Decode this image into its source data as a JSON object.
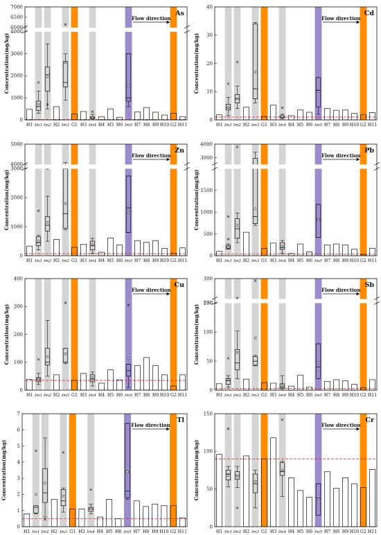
{
  "figure": {
    "flow_label": "Flow direction"
  },
  "chart_data": [
    {
      "type": "bar",
      "title": "As",
      "ylabel": "Concentration(mg/kg)",
      "yticks": [
        "0",
        "1000",
        "2000",
        "3000",
        "4000",
        "6000",
        "6500",
        "7000"
      ],
      "ylim_lower": [
        0,
        4000
      ],
      "ylim_upper": [
        6000,
        7000
      ],
      "reference_line": 20,
      "categories": [
        "H1",
        "Im1",
        "Im2",
        "H2",
        "Im3",
        "G1",
        "H3",
        "Im4",
        "H4",
        "H5",
        "H6",
        "Im5",
        "H7",
        "H8",
        "H9",
        "H10",
        "G2",
        "H11"
      ],
      "values": [
        480,
        null,
        null,
        600,
        null,
        270,
        380,
        null,
        150,
        500,
        120,
        null,
        360,
        560,
        350,
        220,
        300,
        150
      ],
      "boxes": [
        {
          "category": "Im1",
          "min": 300,
          "q1": 430,
          "median": 600,
          "q3": 850,
          "max": 1300,
          "mean": 700,
          "outliers": [
            1700
          ]
        },
        {
          "category": "Im2",
          "min": 500,
          "q1": 1300,
          "median": 2050,
          "q3": 2400,
          "max": 3450,
          "mean": 1950,
          "outliers": [
            700
          ]
        },
        {
          "category": "Im3",
          "min": 900,
          "q1": 1500,
          "median": 1700,
          "q3": 2650,
          "max": 3000,
          "mean": 2600,
          "outliers": [
            6150
          ]
        },
        {
          "category": "Im4",
          "min": 50,
          "q1": 70,
          "median": 100,
          "q3": 150,
          "max": 250,
          "mean": 110,
          "outliers": [
            370
          ]
        },
        {
          "category": "Im5",
          "min": 600,
          "q1": 850,
          "median": 1000,
          "q3": 3000,
          "max": 3000,
          "mean": 1550,
          "outliers": []
        }
      ]
    },
    {
      "type": "bar",
      "title": "Cd",
      "ylabel": "Concentration(mg/kg)",
      "yticks": [
        "0",
        "10",
        "20",
        "30",
        "40"
      ],
      "ylim": [
        0,
        40
      ],
      "reference_line": 1,
      "categories": [
        "H1",
        "Im1",
        "Im2",
        "H2",
        "Im3",
        "G1",
        "H3",
        "Im4",
        "H4",
        "H5",
        "H6",
        "Im5",
        "H7",
        "H8",
        "H9",
        "H10",
        "G2",
        "H11"
      ],
      "values": [
        1.8,
        null,
        null,
        4.5,
        null,
        1.2,
        5.2,
        null,
        1.5,
        3.5,
        2.7,
        null,
        4.0,
        3.4,
        3.5,
        2.3,
        1.8,
        2.6
      ],
      "boxes": [
        {
          "category": "Im1",
          "min": 1.5,
          "q1": 3.5,
          "median": 4.2,
          "q3": 5.5,
          "max": 8,
          "mean": 4.5,
          "outliers": [
            12.8
          ]
        },
        {
          "category": "Im2",
          "min": 4,
          "q1": 6,
          "median": 7.5,
          "q3": 9,
          "max": 12,
          "mean": 7.5,
          "outliers": [
            20.5
          ]
        },
        {
          "category": "Im3",
          "min": 6,
          "q1": 7.5,
          "median": 11,
          "q3": 34,
          "max": 34.5,
          "mean": 17,
          "outliers": []
        },
        {
          "category": "Im4",
          "min": 0.3,
          "q1": 0.8,
          "median": 1,
          "q3": 1.5,
          "max": 2,
          "mean": 1.2,
          "outliers": [
            4.3
          ]
        },
        {
          "category": "Im5",
          "min": 2,
          "q1": 4.5,
          "median": 10.5,
          "q3": 15,
          "max": 15,
          "mean": 10,
          "outliers": []
        }
      ]
    },
    {
      "type": "bar",
      "title": "Zn",
      "ylabel": "Concentration(mg/kg)",
      "yticks": [
        "0",
        "1000",
        "2000",
        "3000",
        "4000",
        "5000"
      ],
      "ylim_lower": [
        0,
        3000
      ],
      "ylim_upper": [
        4000,
        5000
      ],
      "reference_line": 70,
      "categories": [
        "H1",
        "Im1",
        "Im2",
        "H2",
        "Im3",
        "G1",
        "H3",
        "Im4",
        "H4",
        "H5",
        "H6",
        "Im5",
        "H7",
        "H8",
        "H9",
        "H10",
        "G2",
        "H11"
      ],
      "values": [
        330,
        null,
        null,
        560,
        null,
        290,
        390,
        null,
        120,
        610,
        370,
        null,
        520,
        460,
        520,
        250,
        90,
        270
      ],
      "boxes": [
        {
          "category": "Im1",
          "min": 200,
          "q1": 350,
          "median": 450,
          "q3": 650,
          "max": 700,
          "mean": 500,
          "outliers": [
            1550
          ]
        },
        {
          "category": "Im2",
          "min": 500,
          "q1": 850,
          "median": 1050,
          "q3": 1350,
          "max": 2050,
          "mean": 1150,
          "outliers": [
            3350
          ]
        },
        {
          "category": "Im3",
          "min": 900,
          "q1": 950,
          "median": 1450,
          "q3": 3250,
          "max": 4100,
          "mean": 1800,
          "outliers": []
        },
        {
          "category": "Im4",
          "min": 80,
          "q1": 200,
          "median": 350,
          "q3": 500,
          "max": 600,
          "mean": 400,
          "outliers": []
        },
        {
          "category": "Im5",
          "min": 800,
          "q1": 800,
          "median": 1650,
          "q3": 2750,
          "max": 2750,
          "mean": 1500,
          "outliers": []
        }
      ]
    },
    {
      "type": "bar",
      "title": "Pb",
      "ylabel": "Concentration(mg/kg)",
      "yticks": [
        "0",
        "500",
        "1000",
        "1500",
        "3000",
        "4000"
      ],
      "ylim_lower": [
        0,
        2000
      ],
      "ylim_upper": [
        2500,
        4000
      ],
      "reference_line": 40,
      "categories": [
        "H1",
        "Im1",
        "Im2",
        "H2",
        "Im3",
        "G1",
        "H3",
        "Im4",
        "H4",
        "H5",
        "H6",
        "Im5",
        "H7",
        "H8",
        "H9",
        "H10",
        "G2",
        "H11"
      ],
      "values": [
        100,
        null,
        null,
        540,
        null,
        170,
        290,
        null,
        50,
        270,
        90,
        null,
        250,
        270,
        250,
        150,
        30,
        170
      ],
      "boxes": [
        {
          "category": "Im1",
          "min": 150,
          "q1": 160,
          "median": 200,
          "q3": 240,
          "max": 270,
          "mean": 190,
          "outliers": [
            900,
            380
          ]
        },
        {
          "category": "Im2",
          "min": 300,
          "q1": 400,
          "median": 620,
          "q3": 850,
          "max": 980,
          "mean": 700,
          "outliers": [
            3800
          ]
        },
        {
          "category": "Im3",
          "min": 700,
          "q1": 740,
          "median": 900,
          "q3": 2950,
          "max": 3400,
          "mean": 1080,
          "outliers": []
        },
        {
          "category": "Im4",
          "min": 50,
          "q1": 150,
          "median": 190,
          "q3": 300,
          "max": 350,
          "mean": 220,
          "outliers": []
        },
        {
          "category": "Im5",
          "min": 420,
          "q1": 420,
          "median": 830,
          "q3": 1180,
          "max": 1180,
          "mean": 830,
          "outliers": []
        }
      ]
    },
    {
      "type": "bar",
      "title": "Cu",
      "ylabel": "Concentration(mg/kg)",
      "yticks": [
        "0",
        "100",
        "200",
        "300",
        "400"
      ],
      "ylim": [
        0,
        400
      ],
      "reference_line": 35,
      "categories": [
        "H1",
        "Im1",
        "Im2",
        "H2",
        "Im3",
        "G1",
        "H3",
        "Im4",
        "H4",
        "H5",
        "H6",
        "Im5",
        "H7",
        "H8",
        "H9",
        "H10",
        "G2",
        "H11"
      ],
      "values": [
        38,
        null,
        null,
        55,
        null,
        35,
        60,
        null,
        25,
        73,
        37,
        null,
        88,
        117,
        88,
        55,
        15,
        55
      ],
      "boxes": [
        {
          "category": "Im1",
          "min": 20,
          "q1": 30,
          "median": 38,
          "q3": 45,
          "max": 60,
          "mean": 40,
          "outliers": [
            110
          ]
        },
        {
          "category": "Im2",
          "min": 50,
          "q1": 90,
          "median": 100,
          "q3": 150,
          "max": 250,
          "mean": 120,
          "outliers": []
        },
        {
          "category": "Im3",
          "min": 95,
          "q1": 100,
          "median": 100,
          "q3": 150,
          "max": 150,
          "mean": 130,
          "outliers": [
            313
          ]
        },
        {
          "category": "Im4",
          "min": 15,
          "q1": 30,
          "median": 40,
          "q3": 55,
          "max": 65,
          "mean": 45,
          "outliers": []
        },
        {
          "category": "Im5",
          "min": 10,
          "q1": 50,
          "median": 70,
          "q3": 93,
          "max": 93,
          "mean": 115,
          "outliers": [
            305
          ]
        }
      ]
    },
    {
      "type": "bar",
      "title": "Sb",
      "ylabel": "Concentration(mg/kg)",
      "yticks": [
        "0",
        "50",
        "100",
        "150",
        "200",
        "300"
      ],
      "ylim_lower": [
        0,
        150
      ],
      "ylim_upper": [
        250,
        300
      ],
      "reference_line": 3,
      "categories": [
        "H1",
        "Im1",
        "Im2",
        "H2",
        "Im3",
        "G1",
        "H3",
        "Im4",
        "H4",
        "H5",
        "H6",
        "Im5",
        "H7",
        "H8",
        "H9",
        "H10",
        "G2",
        "H11"
      ],
      "values": [
        11,
        null,
        null,
        19,
        null,
        13,
        12,
        null,
        7,
        26,
        5,
        null,
        15,
        18,
        16,
        10,
        4,
        18
      ],
      "boxes": [
        {
          "category": "Im1",
          "min": 5,
          "q1": 10,
          "median": 16,
          "q3": 20,
          "max": 25,
          "mean": 18,
          "outliers": [
            55
          ]
        },
        {
          "category": "Im2",
          "min": 20,
          "q1": 35,
          "median": 47,
          "q3": 70,
          "max": 102,
          "mean": 65,
          "outliers": [
            252
          ]
        },
        {
          "category": "Im3",
          "min": 42,
          "q1": 43,
          "median": 50,
          "q3": 58,
          "max": 60,
          "mean": 90,
          "outliers": [
            295
          ]
        },
        {
          "category": "Im4",
          "min": 0,
          "q1": 3,
          "median": 5,
          "q3": 11,
          "max": 25,
          "mean": 8,
          "outliers": []
        },
        {
          "category": "Im5",
          "min": 20,
          "q1": 20,
          "median": 40,
          "q3": 80,
          "max": 80,
          "mean": 48,
          "outliers": []
        }
      ]
    },
    {
      "type": "bar",
      "title": "Tl",
      "ylabel": "Concentration(mg/kg)",
      "yticks": [
        "0",
        "1",
        "2",
        "3",
        "4",
        "5",
        "6",
        "7"
      ],
      "ylim": [
        0,
        7
      ],
      "reference_line": 0.5,
      "categories": [
        "H1",
        "Im1",
        "Im2",
        "H2",
        "Im3",
        "G1",
        "H3",
        "Im4",
        "H4",
        "H5",
        "H6",
        "Im5",
        "H7",
        "H8",
        "H9",
        "H10",
        "G2",
        "H11"
      ],
      "values": [
        0.8,
        null,
        null,
        1.7,
        null,
        1.1,
        1.1,
        null,
        0.6,
        1.7,
        0.5,
        null,
        1.6,
        1.25,
        1.4,
        1.3,
        1.3,
        0.55
      ],
      "boxes": [
        {
          "category": "Im1",
          "min": 0.8,
          "q1": 0.85,
          "median": 1.2,
          "q3": 1.3,
          "max": 1.3,
          "mean": 2.0,
          "outliers": [
            4.7
          ]
        },
        {
          "category": "Im2",
          "min": 0.6,
          "q1": 1.5,
          "median": 2.1,
          "q3": 3.6,
          "max": 5.5,
          "mean": 2.7,
          "outliers": [
            0.45
          ]
        },
        {
          "category": "Im3",
          "min": 0.9,
          "q1": 1.3,
          "median": 1.6,
          "q3": 2.3,
          "max": 2.4,
          "mean": 1.9,
          "outliers": [
            4.6
          ]
        },
        {
          "category": "Im4",
          "min": 0.8,
          "q1": 0.95,
          "median": 1.1,
          "q3": 1.2,
          "max": 1.4,
          "mean": 1.1,
          "outliers": [
            2.3
          ]
        },
        {
          "category": "Im5",
          "min": 1.7,
          "q1": 1.8,
          "median": 2.2,
          "q3": 6.4,
          "max": 6.4,
          "mean": 3.4,
          "outliers": []
        }
      ]
    },
    {
      "type": "bar",
      "title": "Cr",
      "ylabel": "Concentration(mg/kg)",
      "yticks": [
        "0",
        "50",
        "100",
        "150"
      ],
      "ylim": [
        0,
        150
      ],
      "reference_line": 90,
      "categories": [
        "H1",
        "Im1",
        "Im2",
        "H2",
        "Im3",
        "G1",
        "H3",
        "Im4",
        "H4",
        "H5",
        "H6",
        "Im5",
        "H7",
        "H8",
        "H9",
        "H10",
        "G2",
        "H11"
      ],
      "values": [
        96,
        null,
        null,
        94,
        null,
        90,
        118,
        null,
        65,
        48,
        39,
        null,
        73,
        51,
        65,
        57,
        52,
        76
      ],
      "boxes": [
        {
          "category": "Im1",
          "min": 53,
          "q1": 62,
          "median": 70,
          "q3": 75,
          "max": 80,
          "mean": 68,
          "outliers": [
            130
          ]
        },
        {
          "category": "Im2",
          "min": 52,
          "q1": 63,
          "median": 68,
          "q3": 73,
          "max": 80,
          "mean": 67,
          "outliers": [
            25
          ]
        },
        {
          "category": "Im3",
          "min": 25,
          "q1": 45,
          "median": 57,
          "q3": 70,
          "max": 75,
          "mean": 60,
          "outliers": []
        },
        {
          "category": "Im4",
          "min": 40,
          "q1": 68,
          "median": 73,
          "q3": 85,
          "max": 87,
          "mean": 75,
          "outliers": [
            142
          ]
        },
        {
          "category": "Im5",
          "min": 15,
          "q1": 15,
          "median": 38,
          "q3": 57,
          "max": 57,
          "mean": 37,
          "outliers": []
        }
      ]
    }
  ]
}
